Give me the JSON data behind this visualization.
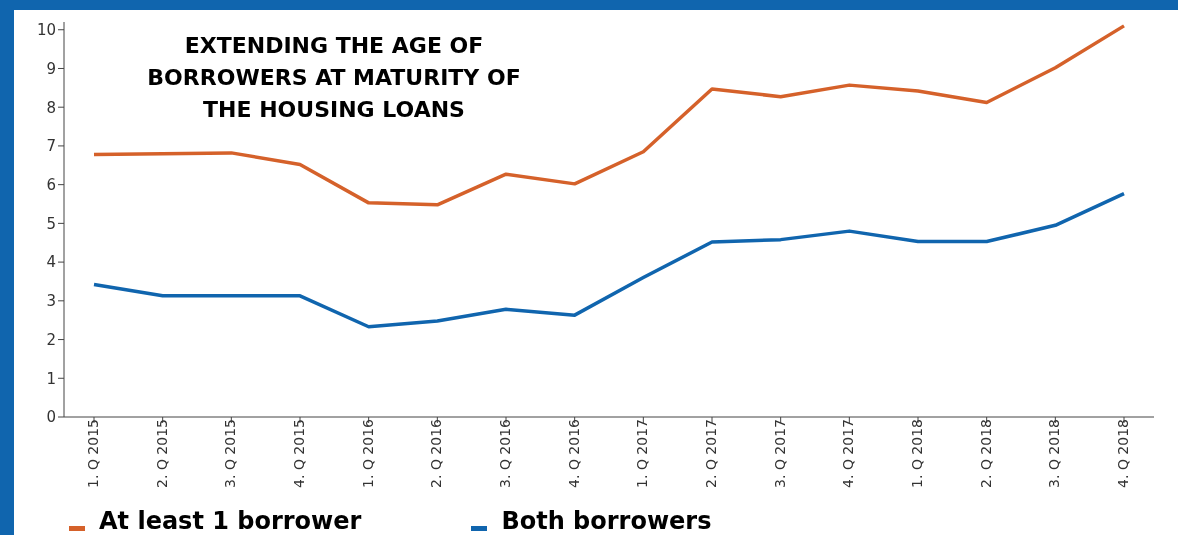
{
  "chart_data": {
    "type": "line",
    "title": "EXTENDING THE AGE OF BORROWERS AT MATURITY OF THE HOUSING LOANS",
    "categories": [
      "1. Q 2015",
      "2. Q 2015",
      "3. Q 2015",
      "4. Q 2015",
      "1. Q 2016",
      "2. Q 2016",
      "3. Q 2016",
      "4. Q 2016",
      "1. Q 2017",
      "2. Q 2017",
      "3. Q 2017",
      "4. Q 2017",
      "1. Q 2018",
      "2. Q 2018",
      "3. Q 2018",
      "4. Q 2018"
    ],
    "series": [
      {
        "name": "At least 1 borrower",
        "color": "#d5612a",
        "values": [
          6.78,
          6.8,
          6.82,
          6.52,
          5.53,
          5.48,
          6.27,
          6.02,
          6.85,
          8.47,
          8.27,
          8.57,
          8.42,
          8.12,
          9.02,
          10.1
        ]
      },
      {
        "name": "Both borrowers",
        "color": "#1065ae",
        "values": [
          3.42,
          3.13,
          3.13,
          3.13,
          2.33,
          2.48,
          2.78,
          2.63,
          3.6,
          4.52,
          4.58,
          4.8,
          4.53,
          4.53,
          4.95,
          5.77
        ]
      }
    ],
    "ylim": [
      0,
      10.2
    ],
    "yticks": [
      0,
      1,
      2,
      3,
      4,
      5,
      6,
      7,
      8,
      9,
      10
    ],
    "grid": false,
    "legend": "bottom",
    "marker": "none",
    "line_style": "solid"
  }
}
